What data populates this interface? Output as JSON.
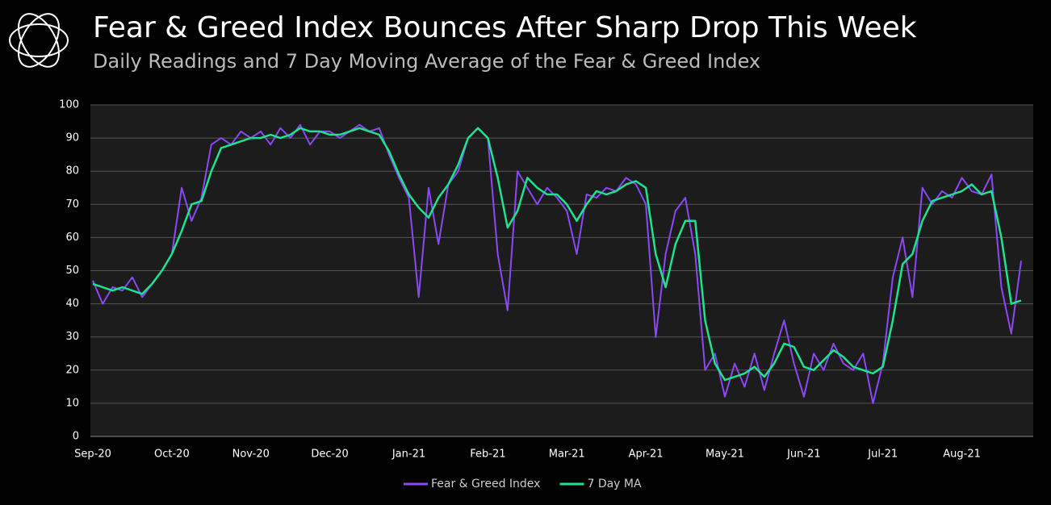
{
  "chart_data": {
    "type": "line",
    "title": "Fear & Greed Index Bounces After Sharp Drop This Week",
    "subtitle": "Daily Readings and 7 Day Moving Average of the Fear & Greed Index",
    "categories": [
      "Sep-20",
      null,
      null,
      null,
      null,
      null,
      null,
      null,
      "Oct-20",
      null,
      null,
      null,
      null,
      null,
      null,
      null,
      "Nov-20",
      null,
      null,
      null,
      null,
      null,
      null,
      null,
      "Dec-20",
      null,
      null,
      null,
      null,
      null,
      null,
      null,
      "Jan-21",
      null,
      null,
      null,
      null,
      null,
      null,
      null,
      "Feb-21",
      null,
      null,
      null,
      null,
      null,
      null,
      null,
      "Mar-21",
      null,
      null,
      null,
      null,
      null,
      null,
      null,
      "Apr-21",
      null,
      null,
      null,
      null,
      null,
      null,
      null,
      "May-21",
      null,
      null,
      null,
      null,
      null,
      null,
      null,
      "Jun-21",
      null,
      null,
      null,
      null,
      null,
      null,
      null,
      "Jul-21",
      null,
      null,
      null,
      null,
      null,
      null,
      null,
      "Aug-21",
      null,
      null,
      null,
      null,
      null,
      null
    ],
    "series": [
      {
        "name": "Fear & Greed Index",
        "color": "#8b48f7",
        "values": [
          47,
          40,
          45,
          44,
          48,
          42,
          46,
          50,
          55,
          75,
          65,
          72,
          88,
          90,
          88,
          92,
          90,
          92,
          88,
          93,
          90,
          94,
          88,
          92,
          92,
          90,
          92,
          94,
          92,
          93,
          85,
          78,
          72,
          42,
          75,
          58,
          76,
          80,
          90,
          93,
          90,
          55,
          38,
          80,
          75,
          70,
          75,
          72,
          68,
          55,
          73,
          72,
          75,
          74,
          78,
          76,
          70,
          30,
          55,
          68,
          72,
          55,
          20,
          25,
          12,
          22,
          15,
          25,
          14,
          25,
          35,
          22,
          12,
          25,
          20,
          28,
          22,
          20,
          25,
          10,
          22,
          48,
          60,
          42,
          75,
          70,
          74,
          72,
          78,
          74,
          73,
          79,
          45,
          31,
          53
        ]
      },
      {
        "name": "7 Day MA",
        "color": "#1de38e",
        "values": [
          46,
          45,
          44,
          45,
          44,
          43,
          46,
          50,
          55,
          62,
          70,
          71,
          80,
          87,
          88,
          89,
          90,
          90,
          91,
          90,
          91,
          93,
          92,
          92,
          91,
          91,
          92,
          93,
          92,
          91,
          86,
          79,
          73,
          69,
          66,
          72,
          76,
          82,
          90,
          93,
          90,
          78,
          63,
          68,
          78,
          75,
          73,
          73,
          70,
          65,
          70,
          74,
          73,
          74,
          76,
          77,
          75,
          55,
          45,
          58,
          65,
          65,
          35,
          22,
          17,
          18,
          19,
          21,
          18,
          22,
          28,
          27,
          21,
          20,
          23,
          26,
          24,
          21,
          20,
          19,
          21,
          35,
          52,
          55,
          65,
          71,
          72,
          73,
          74,
          76,
          73,
          74,
          60,
          40,
          41
        ]
      }
    ],
    "ylim": [
      0,
      100
    ],
    "yticks": [
      0,
      10,
      20,
      30,
      40,
      50,
      60,
      70,
      80,
      90,
      100
    ],
    "grid": true,
    "legend": "bottom"
  }
}
